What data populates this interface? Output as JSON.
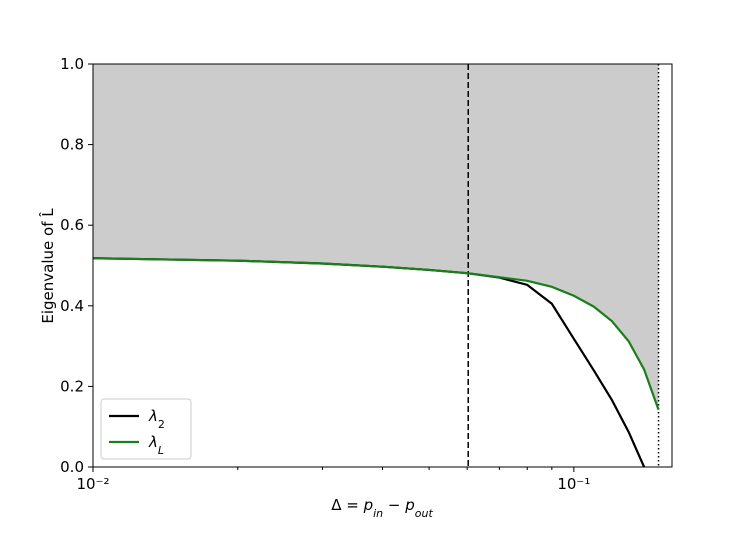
{
  "chart_data": {
    "type": "line",
    "xlabel": [
      "Δ = ",
      "p",
      "in",
      " − ",
      "p",
      "out"
    ],
    "ylabel": "Eigenvalue of L̂",
    "x": [
      0.01,
      0.02,
      0.03,
      0.04,
      0.05,
      0.06,
      0.07,
      0.08,
      0.09,
      0.1,
      0.11,
      0.12,
      0.13,
      0.14,
      0.15
    ],
    "series": [
      {
        "name": "λ",
        "subscript": "2",
        "color": "#000000",
        "values": [
          0.518,
          0.512,
          0.505,
          0.497,
          0.489,
          0.481,
          0.47,
          0.452,
          0.405,
          0.318,
          0.24,
          0.166,
          0.087,
          0.0,
          null
        ]
      },
      {
        "name": "λ",
        "subscript": "L",
        "color": "#1a7f1a",
        "values": [
          0.518,
          0.512,
          0.505,
          0.497,
          0.489,
          0.481,
          0.471,
          0.462,
          0.447,
          0.425,
          0.398,
          0.362,
          0.312,
          0.242,
          0.142
        ]
      }
    ],
    "shade_above_series": 1,
    "shade_color": "#cccccc",
    "vlines": [
      {
        "x": 0.0603,
        "style": "dashed"
      },
      {
        "x": 0.15,
        "style": "dotted"
      }
    ],
    "xscale": "log",
    "xlim": [
      0.01,
      0.16
    ],
    "xticks": [
      {
        "value": 0.01,
        "label": "10⁻²"
      },
      {
        "value": 0.1,
        "label": "10⁻¹"
      }
    ],
    "xminorticks": [
      0.02,
      0.03,
      0.04,
      0.05,
      0.06,
      0.07,
      0.08,
      0.09
    ],
    "ylim": [
      0,
      1
    ],
    "yticks": [
      {
        "value": 0,
        "label": "0.0"
      },
      0.2,
      0.4,
      0.6,
      0.8,
      {
        "value": 1,
        "label": "1.0"
      }
    ],
    "legend": "lower left"
  }
}
